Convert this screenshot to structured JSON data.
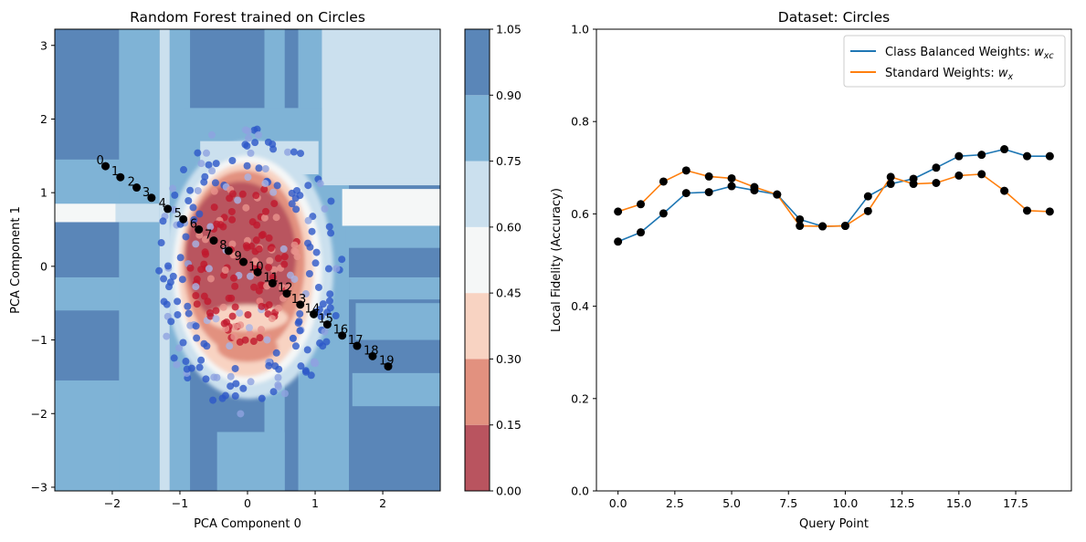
{
  "chart_data": [
    {
      "type": "scatter",
      "title": "Random Forest trained on Circles",
      "xlabel": "PCA Component 0",
      "ylabel": "PCA Component 1",
      "xlim": [
        -2.85,
        2.85
      ],
      "ylim": [
        -3.05,
        3.22
      ],
      "xticks": [
        -2,
        -1,
        0,
        1,
        2
      ],
      "yticks": [
        -3,
        -2,
        -1,
        0,
        1,
        2,
        3
      ],
      "colorbar": {
        "levels": [
          0.0,
          0.15,
          0.3,
          0.45,
          0.6,
          0.75,
          0.9,
          1.05
        ],
        "tick_labels": [
          "0.00",
          "0.15",
          "0.30",
          "0.45",
          "0.60",
          "0.75",
          "0.90",
          "1.05"
        ],
        "colors": [
          "#b9545f",
          "#e2917f",
          "#f8d3c2",
          "#f5f7f7",
          "#cbe0ee",
          "#7fb3d6",
          "#5a86b8"
        ]
      },
      "query_points": {
        "labels": [
          "0",
          "1",
          "2",
          "3",
          "4",
          "5",
          "6",
          "7",
          "8",
          "9",
          "10",
          "11",
          "12",
          "13",
          "14",
          "15",
          "16",
          "17",
          "18",
          "19"
        ],
        "x": [
          -2.1,
          -1.88,
          -1.64,
          -1.42,
          -1.18,
          -0.95,
          -0.72,
          -0.5,
          -0.28,
          -0.06,
          0.15,
          0.37,
          0.58,
          0.78,
          0.98,
          1.18,
          1.4,
          1.62,
          1.85,
          2.08
        ],
        "y": [
          1.36,
          1.21,
          1.07,
          0.93,
          0.78,
          0.64,
          0.5,
          0.35,
          0.21,
          0.06,
          -0.08,
          -0.23,
          -0.37,
          -0.52,
          -0.65,
          -0.79,
          -0.94,
          -1.08,
          -1.22,
          -1.36
        ]
      },
      "grid": false
    },
    {
      "type": "line",
      "title": "Dataset: Circles",
      "xlabel": "Query Point",
      "ylabel": "Local Fidelity (Accuracy)",
      "xlim": [
        -0.95,
        19.95
      ],
      "ylim": [
        0.0,
        1.0
      ],
      "xticks": [
        0.0,
        2.5,
        5.0,
        7.5,
        10.0,
        12.5,
        15.0,
        17.5
      ],
      "xtick_labels": [
        "0.0",
        "2.5",
        "5.0",
        "7.5",
        "10.0",
        "12.5",
        "15.0",
        "17.5"
      ],
      "yticks": [
        0.0,
        0.2,
        0.4,
        0.6,
        0.8,
        1.0
      ],
      "ytick_labels": [
        "0.0",
        "0.2",
        "0.4",
        "0.6",
        "0.8",
        "1.0"
      ],
      "x": [
        0,
        1,
        2,
        3,
        4,
        5,
        6,
        7,
        8,
        9,
        10,
        11,
        12,
        13,
        14,
        15,
        16,
        17,
        18,
        19
      ],
      "series": [
        {
          "name": "Class Balanced Weights: ",
          "symbol": "w",
          "subscript": "xc",
          "color": "#1f77b4",
          "values": [
            0.54,
            0.56,
            0.601,
            0.645,
            0.647,
            0.66,
            0.651,
            0.642,
            0.588,
            0.573,
            0.574,
            0.638,
            0.665,
            0.676,
            0.7,
            0.725,
            0.728,
            0.74,
            0.725,
            0.725
          ]
        },
        {
          "name": "Standard Weights: ",
          "symbol": "w",
          "subscript": "x",
          "color": "#ff7f0e",
          "values": [
            0.605,
            0.621,
            0.67,
            0.694,
            0.681,
            0.677,
            0.658,
            0.642,
            0.574,
            0.573,
            0.574,
            0.606,
            0.68,
            0.665,
            0.667,
            0.683,
            0.686,
            0.65,
            0.607,
            0.605
          ]
        }
      ],
      "legend_position": "top-right",
      "grid": false
    }
  ]
}
